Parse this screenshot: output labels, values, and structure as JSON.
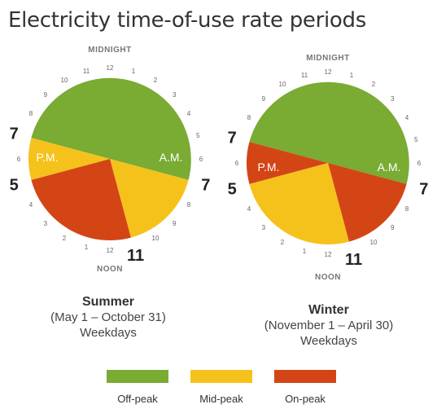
{
  "title": "Electricity time-of-use rate periods",
  "legend": [
    {
      "label": "Off-peak",
      "color": "#7aab33"
    },
    {
      "label": "Mid-peak",
      "color": "#f5c21c"
    },
    {
      "label": "On-peak",
      "color": "#d44516"
    }
  ],
  "clock": {
    "top_label": "MIDNIGHT",
    "bottom_label": "NOON",
    "hour_numbers": [
      "12",
      "1",
      "2",
      "3",
      "4",
      "5",
      "6",
      "7",
      "8",
      "9",
      "10",
      "11",
      "12",
      "1",
      "2",
      "3",
      "4",
      "5",
      "6",
      "7",
      "8",
      "9",
      "10",
      "11"
    ]
  },
  "chart_data": [
    {
      "type": "pie",
      "season": "Summer",
      "date_range": "(May 1 – October 31)",
      "day_type": "Weekdays",
      "am_label": "A.M.",
      "pm_label": "P.M.",
      "emphasized_hours": [
        {
          "hour": 7,
          "label": "7"
        },
        {
          "hour": 11,
          "label": "11"
        },
        {
          "hour": 17,
          "label": "5"
        },
        {
          "hour": 19,
          "label": "7"
        }
      ],
      "periods": [
        {
          "rate": "Off-peak",
          "start_hour": 19,
          "end_hour": 31
        },
        {
          "rate": "Mid-peak",
          "start_hour": 7,
          "end_hour": 11
        },
        {
          "rate": "On-peak",
          "start_hour": 11,
          "end_hour": 17
        },
        {
          "rate": "Mid-peak",
          "start_hour": 17,
          "end_hour": 19
        }
      ]
    },
    {
      "type": "pie",
      "season": "Winter",
      "date_range": "(November 1 – April 30)",
      "day_type": "Weekdays",
      "am_label": "A.M.",
      "pm_label": "P.M.",
      "emphasized_hours": [
        {
          "hour": 7,
          "label": "7"
        },
        {
          "hour": 11,
          "label": "11"
        },
        {
          "hour": 17,
          "label": "5"
        },
        {
          "hour": 19,
          "label": "7"
        }
      ],
      "periods": [
        {
          "rate": "Off-peak",
          "start_hour": 19,
          "end_hour": 31
        },
        {
          "rate": "On-peak",
          "start_hour": 7,
          "end_hour": 11
        },
        {
          "rate": "Mid-peak",
          "start_hour": 11,
          "end_hour": 17
        },
        {
          "rate": "On-peak",
          "start_hour": 17,
          "end_hour": 19
        }
      ]
    }
  ]
}
